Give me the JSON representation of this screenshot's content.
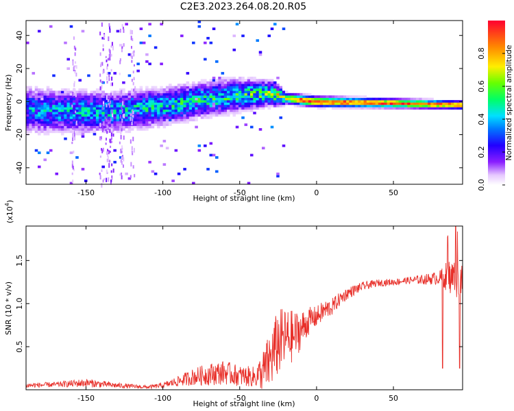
{
  "title": "C2E3.2023.264.08.20.R05",
  "colors": {
    "snr_line": "#e8302a",
    "axis": "#000000"
  },
  "chart_data": [
    {
      "type": "heatmap",
      "name": "spectrogram",
      "xlabel": "Height of straight line (km)",
      "ylabel": "Frequency (Hz)",
      "xlim": [
        -189,
        95
      ],
      "ylim": [
        -50,
        49
      ],
      "xticks": [
        -150,
        -100,
        -50,
        0,
        50
      ],
      "xtick_labels": [
        "-150",
        "-100",
        "-50",
        "0",
        "50"
      ],
      "yticks": [
        -40,
        -20,
        0,
        20,
        40
      ],
      "ytick_labels": [
        "-40",
        "-20",
        "0",
        "20",
        "40"
      ],
      "ridge": {
        "description_points_km_hz": [
          [
            -189,
            -5
          ],
          [
            -160,
            -6
          ],
          [
            -130,
            -6
          ],
          [
            -100,
            -3
          ],
          [
            -75,
            1
          ],
          [
            -50,
            4
          ],
          [
            -30,
            5
          ],
          [
            -20,
            2
          ],
          [
            0,
            0
          ],
          [
            50,
            -1
          ],
          [
            95,
            -2
          ]
        ],
        "spread_hz": [
          [
            -189,
            12
          ],
          [
            -50,
            9
          ],
          [
            -25,
            6
          ],
          [
            -20,
            3
          ],
          [
            95,
            2.2
          ]
        ],
        "peak_amplitude": [
          [
            -189,
            0.35
          ],
          [
            -50,
            0.45
          ],
          [
            -25,
            0.6
          ],
          [
            -10,
            0.95
          ],
          [
            95,
            0.95
          ]
        ]
      },
      "colorbar": {
        "label": "Normalized spectral amplitude",
        "range": [
          0,
          1
        ],
        "ticks": [
          0.0,
          0.2,
          0.4,
          0.6,
          0.8
        ],
        "tick_labels": [
          "0.0",
          "0.2",
          "0.4",
          "0.6",
          "0.8"
        ]
      }
    },
    {
      "type": "line",
      "name": "snr",
      "xlabel": "Height of straight line (km)",
      "ylabel": "SNR (10 * v/v)",
      "y_exponent_label": "(x10",
      "y_exponent_power": "4",
      "y_exponent_close": ")",
      "xlim": [
        -189,
        95
      ],
      "ylim": [
        0,
        1.9
      ],
      "xticks": [
        -150,
        -100,
        -50,
        0,
        50
      ],
      "xtick_labels": [
        "-150",
        "-100",
        "-50",
        "0",
        "50"
      ],
      "yticks": [
        0.5,
        1.0,
        1.5
      ],
      "ytick_labels": [
        "0.5",
        "1.0",
        "1.5"
      ],
      "envelope": {
        "x": [
          -189,
          -170,
          -150,
          -130,
          -110,
          -100,
          -90,
          -80,
          -70,
          -60,
          -50,
          -40,
          -35,
          -30,
          -25,
          -20,
          -15,
          -10,
          -5,
          0,
          5,
          10,
          15,
          20,
          30,
          40,
          50,
          60,
          70,
          80,
          85,
          90,
          95
        ],
        "mean": [
          0.05,
          0.06,
          0.08,
          0.05,
          0.03,
          0.05,
          0.1,
          0.15,
          0.18,
          0.2,
          0.16,
          0.15,
          0.2,
          0.35,
          0.55,
          0.6,
          0.62,
          0.7,
          0.8,
          0.85,
          0.92,
          0.96,
          1.05,
          1.12,
          1.2,
          1.24,
          1.25,
          1.27,
          1.28,
          1.3,
          1.32,
          1.3,
          1.28
        ],
        "noise": [
          0.03,
          0.03,
          0.05,
          0.03,
          0.02,
          0.03,
          0.06,
          0.1,
          0.13,
          0.14,
          0.12,
          0.12,
          0.25,
          0.35,
          0.4,
          0.35,
          0.3,
          0.22,
          0.16,
          0.12,
          0.12,
          0.1,
          0.08,
          0.07,
          0.05,
          0.04,
          0.04,
          0.04,
          0.06,
          0.08,
          0.18,
          0.25,
          0.15
        ]
      }
    }
  ]
}
